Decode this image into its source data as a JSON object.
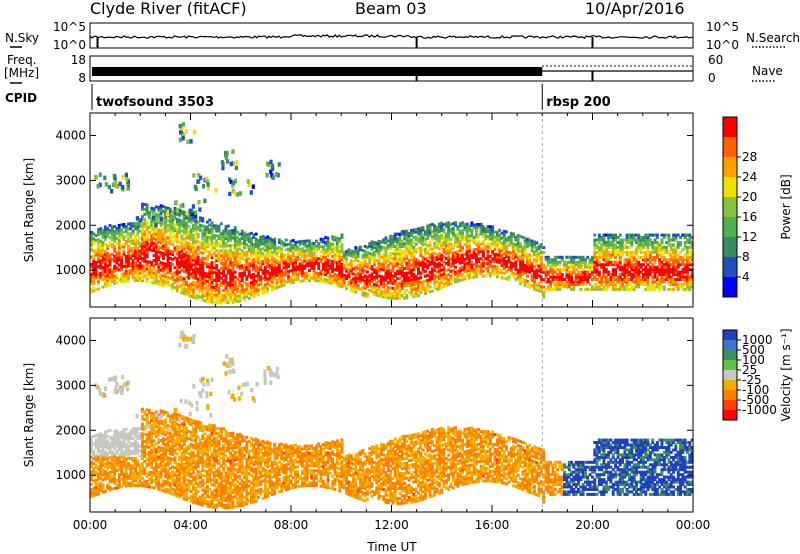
{
  "header": {
    "station": "Clyde River (fitACF)",
    "beam": "Beam 03",
    "date": "10/Apr/2016"
  },
  "strip": {
    "nsky_label": "N.Sky",
    "nsearch_label": "N.Search",
    "nsky_ticks": [
      "10^5",
      "10^0"
    ],
    "nsearch_ticks": [
      "10^5",
      "10^0"
    ],
    "freq_label_top": "Freq.",
    "freq_label_bottom": "[MHz]",
    "freq_ticks": [
      "18",
      "8"
    ],
    "nave_label": "Nave",
    "nave_ticks": [
      "60",
      "0"
    ],
    "cpid_label": "CPID",
    "cpid_modes": [
      {
        "name": "twofsound 3503",
        "start_hour": 0.0
      },
      {
        "name": "rbsp 200",
        "start_hour": 18.0
      }
    ]
  },
  "chart_data": [
    {
      "type": "heatmap",
      "name": "power",
      "ylabel": "Slant Range [km]",
      "xlabel": "",
      "xlim_hours": [
        0,
        24
      ],
      "x_tick_labels": [
        "00:00",
        "04:00",
        "08:00",
        "12:00",
        "16:00",
        "20:00",
        "00:00"
      ],
      "ylim": [
        180,
        4500
      ],
      "y_ticks": [
        1000,
        2000,
        3000,
        4000
      ],
      "colorbar": {
        "label": "Power [dB]",
        "ticks": [
          4,
          8,
          12,
          16,
          20,
          24,
          28
        ],
        "colors": [
          "#0000ff",
          "#2050c0",
          "#3a8a60",
          "#4fb050",
          "#8ac040",
          "#f0e000",
          "#ffa000",
          "#ff6000",
          "#ff0000"
        ]
      }
    },
    {
      "type": "heatmap",
      "name": "velocity",
      "ylabel": "Slant Range [km]",
      "xlabel": "Time UT",
      "xlim_hours": [
        0,
        24
      ],
      "x_tick_labels": [
        "00:00",
        "04:00",
        "08:00",
        "12:00",
        "16:00",
        "20:00",
        "00:00"
      ],
      "ylim": [
        180,
        4500
      ],
      "y_ticks": [
        1000,
        2000,
        3000,
        4000
      ],
      "colorbar": {
        "label": "Velocity [m s⁻¹]",
        "ticks": [
          "1000",
          "500",
          "100",
          "25",
          "-25",
          "-100",
          "-500",
          "-1000"
        ],
        "colors": [
          "#2040c0",
          "#4070d0",
          "#3a9060",
          "#60c040",
          "#c8c8c0",
          "#f0b000",
          "#ff8000",
          "#ff4000",
          "#ff0000"
        ]
      }
    }
  ]
}
